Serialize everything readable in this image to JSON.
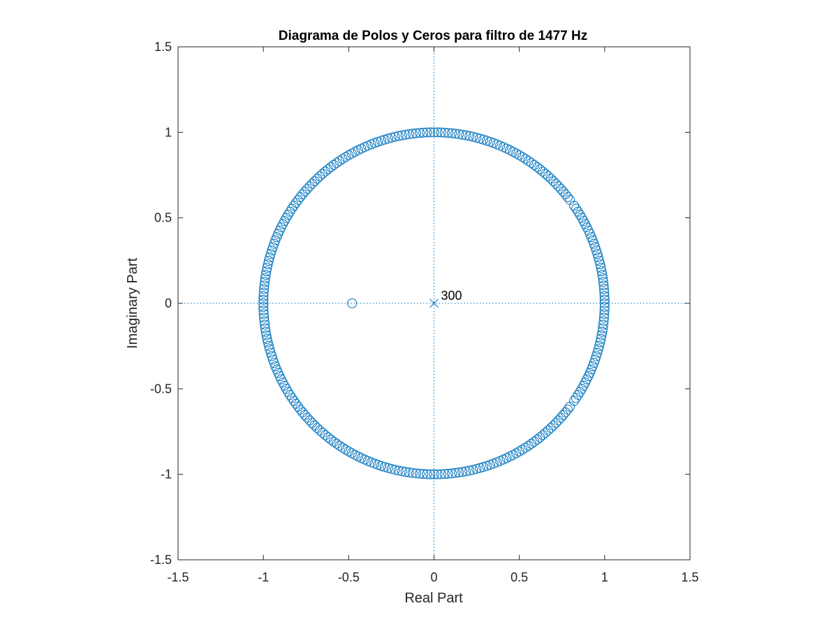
{
  "chart_data": {
    "type": "scatter",
    "title": "Diagrama de Polos y Ceros para filtro de 1477 Hz",
    "xlabel": "Real Part",
    "ylabel": "Imaginary Part",
    "xlim": [
      -1.5,
      1.5
    ],
    "ylim": [
      -1.5,
      1.5
    ],
    "xticks": [
      "-1.5",
      "-1",
      "-0.5",
      "0",
      "0.5",
      "1",
      "1.5"
    ],
    "yticks": [
      "1.5",
      "1",
      "0.5",
      "0",
      "-0.5",
      "-1",
      "-1.5"
    ],
    "xtick_values": [
      -1.5,
      -1,
      -0.5,
      0,
      0.5,
      1,
      1.5
    ],
    "ytick_values": [
      1.5,
      1,
      0.5,
      0,
      -0.5,
      -1,
      -1.5
    ],
    "grid": false,
    "reference_lines": [
      "x=0 dotted",
      "y=0 dotted"
    ],
    "color": "#0072BD",
    "series": [
      {
        "marker": "o",
        "kind": "zeros",
        "unit_circle_zero_count": 299,
        "unit_circle_radius": 1.0,
        "unit_circle_gap_angles_deg": [
          36.0,
          -36.0
        ],
        "extra_points": [
          {
            "x": -0.48,
            "y": 0
          }
        ]
      },
      {
        "marker": "x",
        "kind": "poles",
        "points": [
          {
            "x": 0,
            "y": 0
          }
        ],
        "multiplicity_label": "300"
      }
    ],
    "annotations": [
      {
        "text": "300",
        "x": 0,
        "y": 0
      }
    ]
  }
}
